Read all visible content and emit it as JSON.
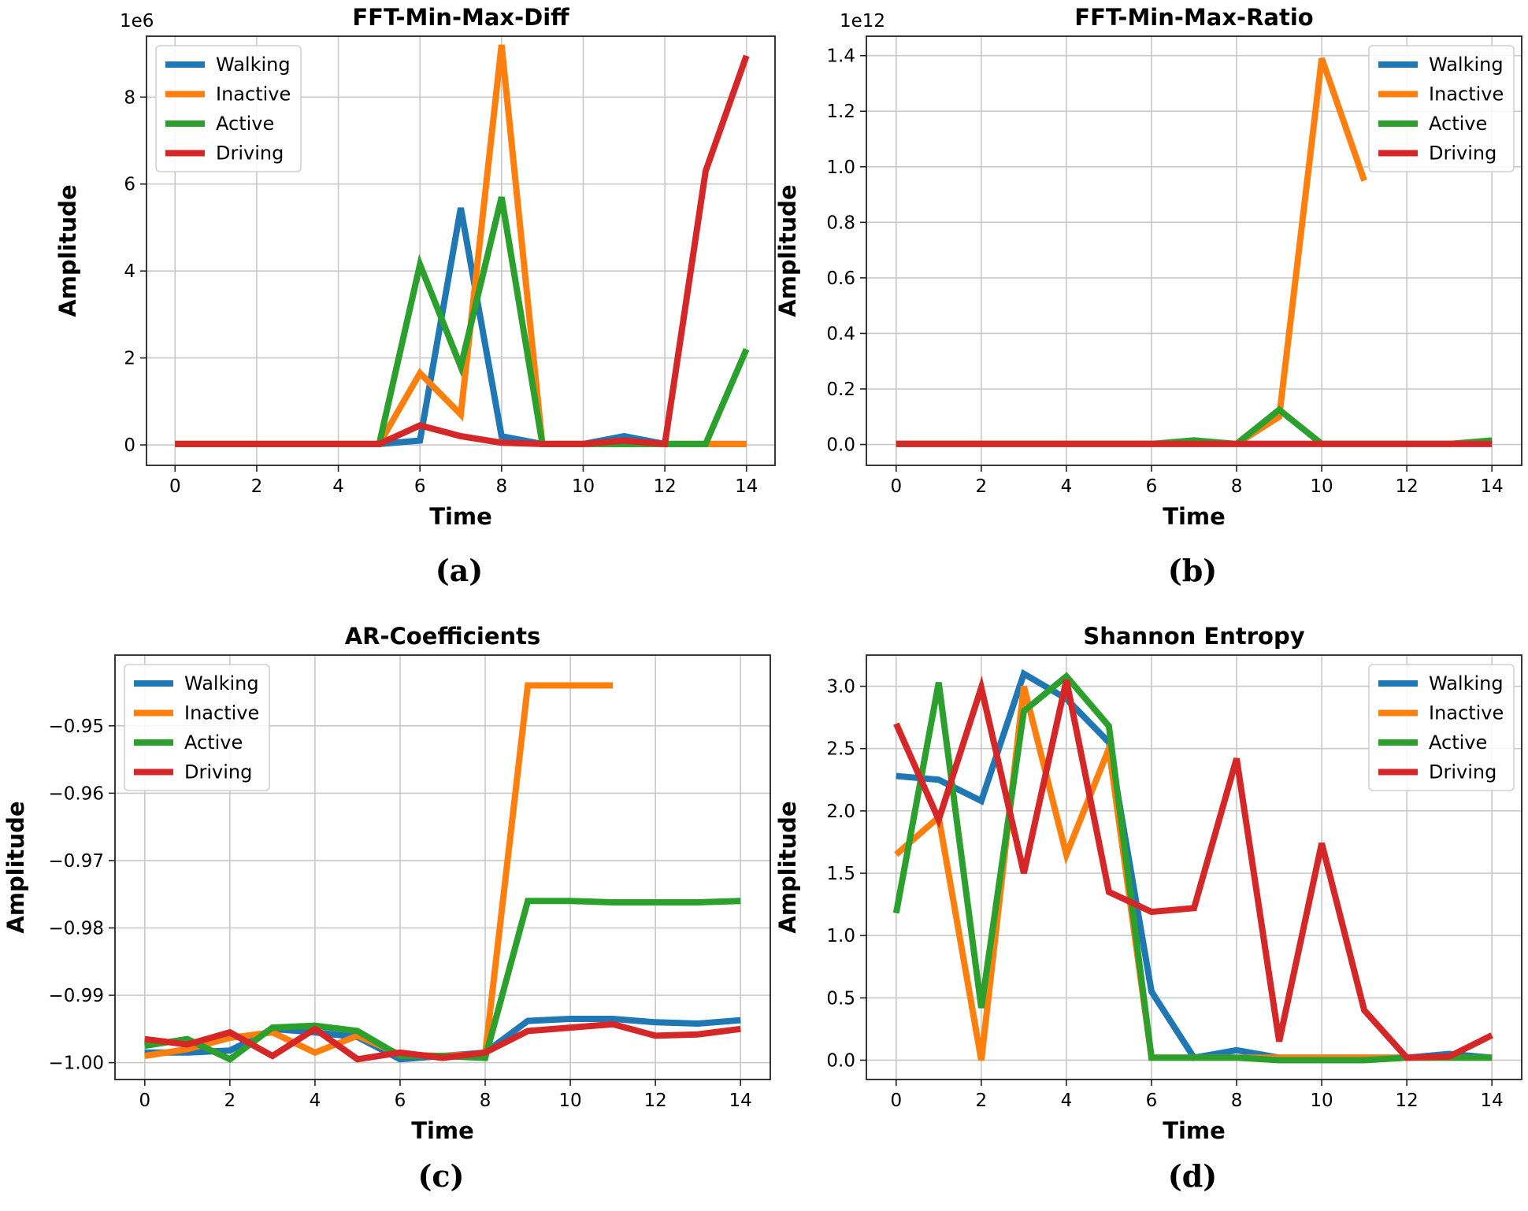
{
  "colors": {
    "Walking": "#1f77b4",
    "Inactive": "#ff7f0e",
    "Active": "#2ca02c",
    "Driving": "#d62728"
  },
  "chart_data": [
    {
      "type": "line",
      "title": "FFT-Min-Max-Diff",
      "xlabel": "Time",
      "ylabel": "Amplitude",
      "offset_label": "1e6",
      "caption": "(a)",
      "xlim": [
        -0.7,
        14.7
      ],
      "ylim": [
        -0.47,
        9.4
      ],
      "xticks": [
        0,
        2,
        4,
        6,
        8,
        10,
        12,
        14
      ],
      "xtick_labels": [
        "0",
        "2",
        "4",
        "6",
        "8",
        "10",
        "12",
        "14"
      ],
      "yticks": [
        0,
        2,
        4,
        6,
        8
      ],
      "ytick_labels": [
        "0",
        "2",
        "4",
        "6",
        "8"
      ],
      "legend": "upper-left",
      "x": [
        0,
        1,
        2,
        3,
        4,
        5,
        6,
        7,
        8,
        9,
        10,
        11,
        12,
        13,
        14
      ],
      "series": [
        {
          "name": "Walking",
          "values": [
            0.02,
            0.02,
            0.02,
            0.02,
            0.02,
            0.02,
            0.1,
            5.45,
            0.2,
            0.02,
            0.02,
            0.2,
            0.02,
            0.02,
            0.02
          ]
        },
        {
          "name": "Inactive",
          "values": [
            0.02,
            0.02,
            0.02,
            0.02,
            0.02,
            0.02,
            1.65,
            0.7,
            9.2,
            0.02,
            0.02,
            0.02,
            0.02,
            0.02,
            0.02
          ]
        },
        {
          "name": "Active",
          "values": [
            0.02,
            0.02,
            0.02,
            0.02,
            0.02,
            0.02,
            4.15,
            1.8,
            5.7,
            0.02,
            0.02,
            0.02,
            0.02,
            0.02,
            2.2
          ]
        },
        {
          "name": "Driving",
          "values": [
            0.02,
            0.02,
            0.02,
            0.02,
            0.02,
            0.02,
            0.45,
            0.2,
            0.05,
            0.02,
            0.02,
            0.1,
            0.02,
            6.3,
            8.95
          ]
        }
      ]
    },
    {
      "type": "line",
      "title": "FFT-Min-Max-Ratio",
      "xlabel": "Time",
      "ylabel": "Amplitude",
      "offset_label": "1e12",
      "caption": "(b)",
      "xlim": [
        -0.7,
        14.7
      ],
      "ylim": [
        -0.075,
        1.47
      ],
      "xticks": [
        0,
        2,
        4,
        6,
        8,
        10,
        12,
        14
      ],
      "xtick_labels": [
        "0",
        "2",
        "4",
        "6",
        "8",
        "10",
        "12",
        "14"
      ],
      "yticks": [
        0,
        0.2,
        0.4,
        0.6,
        0.8,
        1.0,
        1.2,
        1.4
      ],
      "ytick_labels": [
        "0.0",
        "0.2",
        "0.4",
        "0.6",
        "0.8",
        "1.0",
        "1.2",
        "1.4"
      ],
      "legend": "upper-right",
      "x": [
        0,
        1,
        2,
        3,
        4,
        5,
        6,
        7,
        8,
        9,
        10,
        11,
        12,
        13,
        14
      ],
      "series": [
        {
          "name": "Walking",
          "values": [
            0.002,
            0.002,
            0.002,
            0.002,
            0.002,
            0.002,
            0.002,
            0.002,
            0.002,
            0.002,
            0.002,
            0.002,
            0.002,
            0.002,
            0.002
          ]
        },
        {
          "name": "Inactive",
          "values": [
            0.002,
            0.002,
            0.002,
            0.002,
            0.002,
            0.002,
            0.002,
            0.002,
            0.002,
            0.1,
            1.39,
            0.95,
            null,
            null,
            null
          ]
        },
        {
          "name": "Active",
          "values": [
            0.002,
            0.002,
            0.002,
            0.002,
            0.002,
            0.002,
            0.002,
            0.015,
            0.002,
            0.125,
            0.002,
            0.002,
            0.002,
            0.002,
            0.015
          ]
        },
        {
          "name": "Driving",
          "values": [
            0.002,
            0.002,
            0.002,
            0.002,
            0.002,
            0.002,
            0.002,
            0.002,
            0.002,
            0.002,
            0.002,
            0.002,
            0.002,
            0.002,
            0.002
          ]
        }
      ]
    },
    {
      "type": "line",
      "title": "AR-Coefficients",
      "xlabel": "Time",
      "ylabel": "Amplitude",
      "offset_label": "",
      "caption": "(c)",
      "xlim": [
        -0.7,
        14.7
      ],
      "ylim": [
        -1.0025,
        -0.9395
      ],
      "xticks": [
        0,
        2,
        4,
        6,
        8,
        10,
        12,
        14
      ],
      "xtick_labels": [
        "0",
        "2",
        "4",
        "6",
        "8",
        "10",
        "12",
        "14"
      ],
      "yticks": [
        -1.0,
        -0.99,
        -0.98,
        -0.97,
        -0.96,
        -0.95
      ],
      "ytick_labels": [
        "−1.00",
        "−0.99",
        "−0.98",
        "−0.97",
        "−0.96",
        "−0.95"
      ],
      "legend": "upper-left",
      "x": [
        0,
        1,
        2,
        3,
        4,
        5,
        6,
        7,
        8,
        9,
        10,
        11,
        12,
        13,
        14
      ],
      "series": [
        {
          "name": "Walking",
          "values": [
            -0.9985,
            -0.9985,
            -0.9982,
            -0.995,
            -0.9955,
            -0.9962,
            -0.9995,
            -0.999,
            -0.9985,
            -0.9938,
            -0.9935,
            -0.9935,
            -0.994,
            -0.9942,
            -0.9937
          ]
        },
        {
          "name": "Inactive",
          "values": [
            -0.999,
            -0.998,
            -0.9963,
            -0.9955,
            -0.9985,
            -0.996,
            -0.9988,
            -0.999,
            -0.9987,
            -0.944,
            -0.944,
            -0.944,
            null,
            null,
            null
          ]
        },
        {
          "name": "Active",
          "values": [
            -0.9975,
            -0.9965,
            -0.9995,
            -0.9948,
            -0.9945,
            -0.9953,
            -0.999,
            -0.999,
            -0.9993,
            -0.976,
            -0.976,
            -0.9762,
            -0.9762,
            -0.9762,
            -0.976
          ]
        },
        {
          "name": "Driving",
          "values": [
            -0.9965,
            -0.9973,
            -0.9955,
            -0.999,
            -0.995,
            -0.9995,
            -0.9985,
            -0.9993,
            -0.9985,
            -0.9953,
            -0.9948,
            -0.9943,
            -0.996,
            -0.9958,
            -0.995
          ]
        }
      ]
    },
    {
      "type": "line",
      "title": "Shannon Entropy",
      "xlabel": "Time",
      "ylabel": "Amplitude",
      "offset_label": "",
      "caption": "(d)",
      "xlim": [
        -0.7,
        14.7
      ],
      "ylim": [
        -0.155,
        3.25
      ],
      "xticks": [
        0,
        2,
        4,
        6,
        8,
        10,
        12,
        14
      ],
      "xtick_labels": [
        "0",
        "2",
        "4",
        "6",
        "8",
        "10",
        "12",
        "14"
      ],
      "yticks": [
        0,
        0.5,
        1.0,
        1.5,
        2.0,
        2.5,
        3.0
      ],
      "ytick_labels": [
        "0.0",
        "0.5",
        "1.0",
        "1.5",
        "2.0",
        "2.5",
        "3.0"
      ],
      "legend": "upper-right",
      "x": [
        0,
        1,
        2,
        3,
        4,
        5,
        6,
        7,
        8,
        9,
        10,
        11,
        12,
        13,
        14
      ],
      "series": [
        {
          "name": "Walking",
          "values": [
            2.28,
            2.25,
            2.08,
            3.1,
            2.9,
            2.55,
            0.55,
            0.02,
            0.08,
            0.02,
            0.02,
            0.02,
            0.02,
            0.05,
            0.02
          ]
        },
        {
          "name": "Inactive",
          "values": [
            1.65,
            1.95,
            0.0,
            3.0,
            1.65,
            2.5,
            0.02,
            0.02,
            0.02,
            0.02,
            0.02,
            0.02,
            0.02,
            0.02,
            0.02
          ]
        },
        {
          "name": "Active",
          "values": [
            1.18,
            3.03,
            0.42,
            2.8,
            3.08,
            2.68,
            0.02,
            0.02,
            0.02,
            0.0,
            0.0,
            0.0,
            0.02,
            0.02,
            0.02
          ]
        },
        {
          "name": "Driving",
          "values": [
            2.7,
            1.93,
            2.99,
            1.5,
            3.05,
            1.35,
            1.19,
            1.22,
            2.42,
            0.15,
            1.74,
            0.4,
            0.02,
            0.03,
            0.2
          ]
        }
      ]
    }
  ]
}
